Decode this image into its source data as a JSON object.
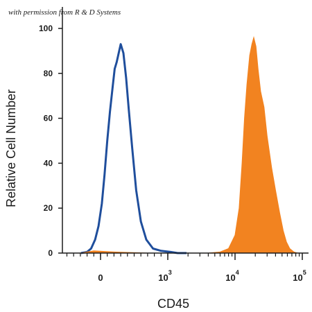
{
  "watermark": "with permission from R & D Systems",
  "chart_data": {
    "type": "area",
    "xlabel": "CD45",
    "ylabel": "Relative Cell Number",
    "x_scale": "biexponential",
    "xlim": [
      -1000,
      100000
    ],
    "ylim": [
      0,
      100
    ],
    "yticks": [
      0,
      20,
      40,
      60,
      80,
      100
    ],
    "xticks": [
      {
        "value": 0,
        "label": "0"
      },
      {
        "value": 1000,
        "base": "10",
        "exponent": "3"
      },
      {
        "value": 10000,
        "base": "10",
        "exponent": "4"
      },
      {
        "value": 100000,
        "base": "10",
        "exponent": "5"
      }
    ],
    "grid": false,
    "series": [
      {
        "style": "outline",
        "color": "#1f4e9c",
        "x": [
          -290,
          -200,
          -140,
          -80,
          -30,
          20,
          60,
          100,
          140,
          180,
          210,
          240,
          270,
          300,
          340,
          380,
          420,
          470,
          530,
          600,
          680,
          780,
          900,
          1100,
          1400,
          1900
        ],
        "y": [
          0,
          0.5,
          2,
          6,
          12,
          22,
          35,
          50,
          63,
          74,
          82,
          85,
          89,
          93,
          89,
          78,
          64,
          47,
          28,
          14,
          6,
          2,
          1,
          0.5,
          0,
          0
        ]
      },
      {
        "style": "filled",
        "color": "#f28320",
        "x": [
          -290,
          -100,
          200,
          700,
          1800,
          4000,
          6000,
          8000,
          10000,
          11500,
          12700,
          13800,
          15000,
          16500,
          17800,
          19000,
          20500,
          22000,
          24000,
          27000,
          30000,
          35000,
          40000,
          46000,
          52000,
          58000,
          65000,
          75000,
          85000
        ],
        "y": [
          0,
          1,
          0.5,
          0,
          0,
          0,
          0.5,
          2,
          8,
          20,
          40,
          60,
          75,
          88,
          93,
          96,
          92,
          82,
          72,
          65,
          52,
          38,
          28,
          18,
          10,
          5,
          2,
          0.5,
          0
        ]
      }
    ]
  }
}
